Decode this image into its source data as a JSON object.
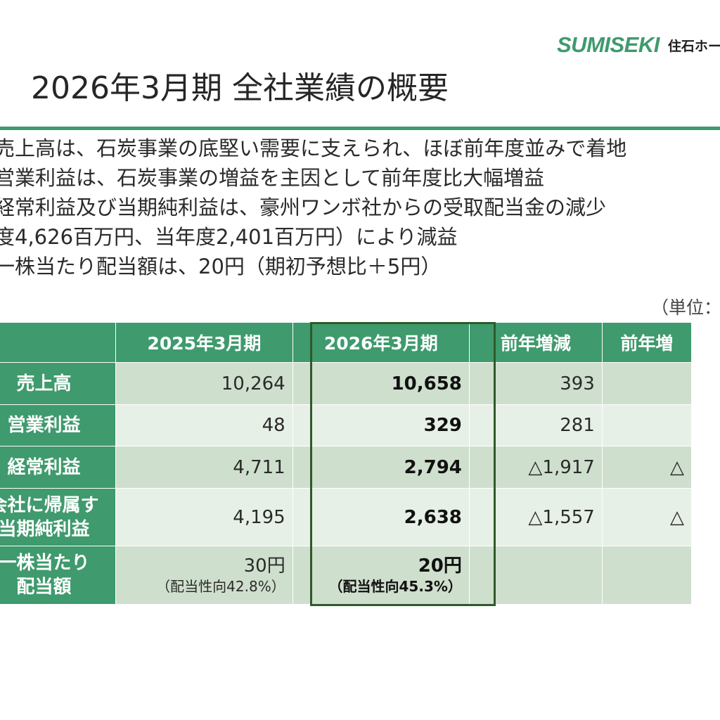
{
  "logo": {
    "brand": "SUMISEKI",
    "jp": "住石ホー"
  },
  "title": "2026年3月期 全社業績の概要",
  "bullets": [
    "売上高は、石炭事業の底堅い需要に支えられ、ほぼ前年度並みで着地",
    "営業利益は、石炭事業の増益を主因として前年度比大幅増益",
    "経常利益及び当期純利益は、豪州ワンボ社からの受取配当金の減少",
    "度4,626百万円、当年度2,401百万円）により減益",
    "一株当たり配当額は、20円（期初予想比＋5円）"
  ],
  "unit": "（単位：",
  "table": {
    "headers": [
      "",
      "2025年3月期",
      "2026年3月期",
      "前年増減",
      "前年増"
    ],
    "rows": [
      {
        "label": [
          "売上高"
        ],
        "prev": "10,264",
        "cur": "10,658",
        "diff": "393",
        "rate": ""
      },
      {
        "label": [
          "営業利益"
        ],
        "prev": "48",
        "cur": "329",
        "diff": "281",
        "rate": ""
      },
      {
        "label": [
          "経常利益"
        ],
        "prev": "4,711",
        "cur": "2,794",
        "diff": "△1,917",
        "rate": "△"
      },
      {
        "label": [
          "会社に帰属す",
          "当期純利益"
        ],
        "prev": "4,195",
        "cur": "2,638",
        "diff": "△1,557",
        "rate": "△"
      },
      {
        "label": [
          "一株当たり",
          "配当額"
        ],
        "prev": "30円",
        "prev_sub": "（配当性向42.8%）",
        "cur": "20円",
        "cur_sub": "（配当性向45.3%）",
        "diff": "",
        "rate": ""
      }
    ]
  }
}
